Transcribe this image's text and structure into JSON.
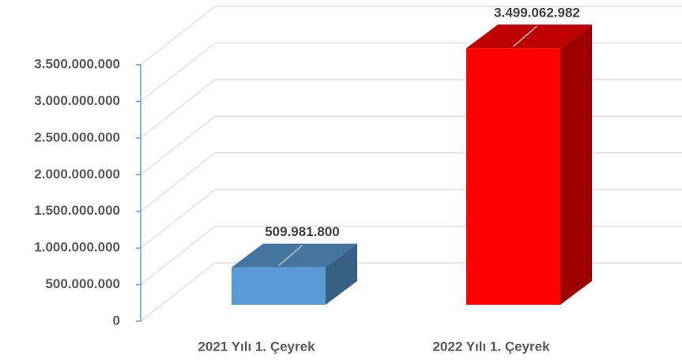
{
  "chart_data": {
    "type": "bar3d",
    "categories": [
      "2021 Yılı 1. Çeyrek",
      "2022 Yılı 1. Çeyrek"
    ],
    "values": [
      509981800,
      3499062982
    ],
    "value_labels": [
      "509.981.800",
      "3.499.062.982"
    ],
    "colors": [
      "#5b9bd5",
      "#ff0000"
    ],
    "ylim": [
      0,
      3500000000
    ],
    "yticks": [
      0,
      {
        "value": 500000000,
        "label": "500.000.000"
      },
      {
        "value": 1000000000,
        "label": "1.000.000.000"
      },
      {
        "value": 1500000000,
        "label": "1.500.000.000"
      },
      {
        "value": 2000000000,
        "label": "2.000.000.000"
      },
      {
        "value": 2500000000,
        "label": "2.500.000.000"
      },
      {
        "value": 3000000000,
        "label": "3.000.000.000"
      },
      {
        "value": 3500000000,
        "label": "3.500.000.000"
      }
    ],
    "grid": true
  }
}
